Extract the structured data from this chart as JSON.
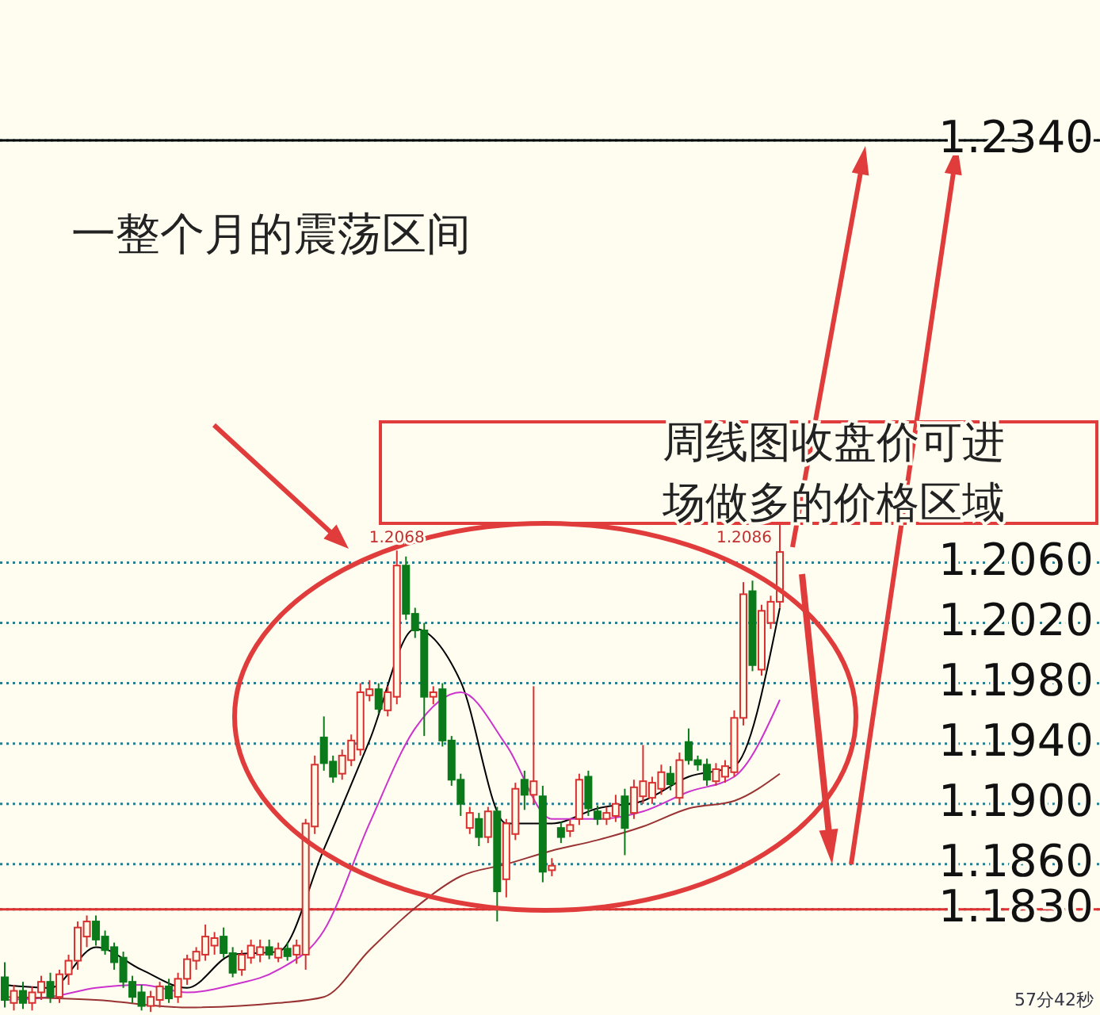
{
  "chart_data": {
    "type": "candlestick",
    "categories": [
      null,
      null,
      null,
      null,
      null,
      null,
      null,
      null,
      null,
      null,
      null,
      null,
      null,
      null,
      null,
      null,
      null,
      null,
      null,
      null,
      null,
      null,
      null,
      null,
      null,
      null,
      null,
      null,
      null,
      null,
      null,
      null,
      null,
      null,
      null,
      null,
      null,
      null,
      null,
      null,
      null,
      null,
      null,
      null,
      null,
      null,
      null,
      null,
      null,
      null,
      null,
      null,
      null,
      null,
      null,
      null,
      null,
      null,
      null,
      null,
      null,
      null,
      null,
      null,
      null,
      null,
      null,
      null,
      null,
      null,
      null,
      null,
      null,
      null,
      null,
      null,
      null,
      null,
      null,
      null,
      null,
      null,
      null,
      null,
      null,
      null
    ],
    "ohlc": [
      [
        1.1785,
        1.1795,
        1.1765,
        1.177
      ],
      [
        1.1768,
        1.178,
        1.1763,
        1.1776
      ],
      [
        1.1776,
        1.1782,
        1.1764,
        1.1768
      ],
      [
        1.1768,
        1.1779,
        1.1763,
        1.1775
      ],
      [
        1.1775,
        1.1786,
        1.177,
        1.1782
      ],
      [
        1.1782,
        1.1788,
        1.1768,
        1.1772
      ],
      [
        1.1772,
        1.179,
        1.1768,
        1.1787
      ],
      [
        1.1787,
        1.18,
        1.178,
        1.1796
      ],
      [
        1.1796,
        1.1822,
        1.179,
        1.1818
      ],
      [
        1.1812,
        1.1826,
        1.1805,
        1.1822
      ],
      [
        1.1822,
        1.1826,
        1.1806,
        1.181
      ],
      [
        1.1812,
        1.1816,
        1.18,
        1.1803
      ],
      [
        1.1805,
        1.1808,
        1.179,
        1.1795
      ],
      [
        1.1798,
        1.1802,
        1.1778,
        1.1782
      ],
      [
        1.1782,
        1.1786,
        1.1768,
        1.1772
      ],
      [
        1.1775,
        1.178,
        1.1763,
        1.1766
      ],
      [
        1.1766,
        1.1776,
        1.1762,
        1.1772
      ],
      [
        1.177,
        1.1782,
        1.1765,
        1.1779
      ],
      [
        1.1779,
        1.1784,
        1.1768,
        1.1771
      ],
      [
        1.1772,
        1.1788,
        1.1768,
        1.1784
      ],
      [
        1.1784,
        1.18,
        1.178,
        1.1797
      ],
      [
        1.1796,
        1.1805,
        1.179,
        1.1802
      ],
      [
        1.18,
        1.182,
        1.1796,
        1.1812
      ],
      [
        1.1806,
        1.1815,
        1.18,
        1.1811
      ],
      [
        1.1812,
        1.1818,
        1.1798,
        1.1801
      ],
      [
        1.1801,
        1.1805,
        1.1785,
        1.1788
      ],
      [
        1.179,
        1.1803,
        1.1786,
        1.18
      ],
      [
        1.1798,
        1.181,
        1.1794,
        1.1806
      ],
      [
        1.18,
        1.181,
        1.1795,
        1.1805
      ],
      [
        1.1805,
        1.181,
        1.1797,
        1.18
      ],
      [
        1.1798,
        1.1808,
        1.1795,
        1.1804
      ],
      [
        1.1804,
        1.1808,
        1.1796,
        1.1799
      ],
      [
        1.18,
        1.181,
        1.1794,
        1.1806
      ],
      [
        1.18,
        1.189,
        1.179,
        1.1887
      ],
      [
        1.1885,
        1.1932,
        1.188,
        1.1926
      ],
      [
        1.1944,
        1.1958,
        1.1922,
        1.1927
      ],
      [
        1.1928,
        1.1932,
        1.1914,
        1.1918
      ],
      [
        1.192,
        1.1936,
        1.1916,
        1.1932
      ],
      [
        1.1929,
        1.1946,
        1.1925,
        1.1942
      ],
      [
        1.1936,
        1.198,
        1.1932,
        1.1974
      ],
      [
        1.1972,
        1.1982,
        1.1968,
        1.1976
      ],
      [
        1.1976,
        1.198,
        1.196,
        1.1963
      ],
      [
        1.1962,
        1.1978,
        1.1958,
        1.1974
      ],
      [
        1.1971,
        1.2068,
        1.1966,
        1.2058
      ],
      [
        1.2058,
        1.2064,
        1.2022,
        1.2026
      ],
      [
        1.2026,
        1.203,
        1.201,
        1.2015
      ],
      [
        1.2015,
        1.202,
        1.1945,
        1.1971
      ],
      [
        1.1971,
        1.1978,
        1.1966,
        1.1974
      ],
      [
        1.1976,
        1.198,
        1.1938,
        1.1942
      ],
      [
        1.1942,
        1.1945,
        1.1912,
        1.1916
      ],
      [
        1.1916,
        1.192,
        1.1892,
        1.19
      ],
      [
        1.1884,
        1.1898,
        1.188,
        1.1894
      ],
      [
        1.189,
        1.1894,
        1.1872,
        1.1878
      ],
      [
        1.1878,
        1.1898,
        1.1874,
        1.1895
      ],
      [
        1.1895,
        1.1898,
        1.1822,
        1.1842
      ],
      [
        1.185,
        1.189,
        1.1838,
        1.1887
      ],
      [
        1.188,
        1.1914,
        1.1876,
        1.191
      ],
      [
        1.1916,
        1.1922,
        1.1896,
        1.1906
      ],
      [
        1.1906,
        1.1978,
        1.19,
        1.1915
      ],
      [
        1.1905,
        1.1912,
        1.1848,
        1.1855
      ],
      [
        1.1856,
        1.1864,
        1.1852,
        1.1859
      ],
      [
        1.1884,
        1.1888,
        1.1874,
        1.1878
      ],
      [
        1.1882,
        1.189,
        1.1878,
        1.1886
      ],
      [
        1.189,
        1.192,
        1.1886,
        1.1916
      ],
      [
        1.1918,
        1.1922,
        1.1892,
        1.1897
      ],
      [
        1.1895,
        1.1899,
        1.1886,
        1.189
      ],
      [
        1.189,
        1.1898,
        1.1886,
        1.1894
      ],
      [
        1.1892,
        1.1906,
        1.1888,
        1.19
      ],
      [
        1.1905,
        1.191,
        1.1866,
        1.1884
      ],
      [
        1.1894,
        1.1916,
        1.189,
        1.1911
      ],
      [
        1.1905,
        1.1939,
        1.19,
        1.1915
      ],
      [
        1.1904,
        1.1918,
        1.19,
        1.1914
      ],
      [
        1.191,
        1.1926,
        1.1906,
        1.1921
      ],
      [
        1.192,
        1.1925,
        1.1909,
        1.1913
      ],
      [
        1.1904,
        1.1934,
        1.19,
        1.1929
      ],
      [
        1.1941,
        1.195,
        1.1926,
        1.1929
      ],
      [
        1.1929,
        1.1932,
        1.1922,
        1.1926
      ],
      [
        1.1926,
        1.193,
        1.1912,
        1.1916
      ],
      [
        1.1915,
        1.1927,
        1.1912,
        1.1923
      ],
      [
        1.1918,
        1.1929,
        1.1914,
        1.1925
      ],
      [
        1.1921,
        1.1962,
        1.1918,
        1.1957
      ],
      [
        1.1957,
        1.2047,
        1.1952,
        1.2039
      ],
      [
        1.2041,
        1.2048,
        1.1988,
        1.1992
      ],
      [
        1.1989,
        1.2032,
        1.1985,
        1.2028
      ],
      [
        1.202,
        1.2038,
        1.2016,
        1.2034
      ],
      [
        1.2034,
        1.2086,
        1.203,
        1.2067
      ]
    ],
    "series": [
      {
        "type": "line",
        "color": "#000000",
        "values": [
          1.178,
          null,
          null,
          null,
          null,
          1.1778,
          null,
          null,
          null,
          null,
          1.1805,
          null,
          null,
          null,
          null,
          1.179,
          null,
          null,
          null,
          null,
          1.1778,
          null,
          null,
          null,
          null,
          1.18,
          null,
          null,
          null,
          null,
          1.1802,
          null,
          null,
          null,
          null,
          1.187,
          null,
          null,
          null,
          null,
          1.1942,
          null,
          null,
          null,
          null,
          1.2016,
          null,
          null,
          null,
          null,
          1.1981,
          null,
          null,
          null,
          null,
          1.1887,
          null,
          null,
          null,
          null,
          1.1887,
          null,
          null,
          null,
          null,
          1.1897,
          null,
          null,
          null,
          null,
          1.1902,
          null,
          null,
          null,
          null,
          1.1918,
          null,
          null,
          null,
          null,
          1.1925,
          null,
          null,
          null,
          null,
          1.203
        ]
      },
      {
        "type": "line",
        "color": "#cc33cc",
        "values": [
          1.177,
          null,
          null,
          null,
          null,
          1.1772,
          null,
          null,
          null,
          null,
          1.1778,
          null,
          null,
          null,
          null,
          1.178,
          null,
          null,
          null,
          null,
          1.1775,
          null,
          null,
          null,
          null,
          1.178,
          null,
          null,
          null,
          null,
          1.179,
          null,
          null,
          null,
          null,
          1.1816,
          null,
          null,
          null,
          null,
          1.1887,
          null,
          null,
          null,
          null,
          1.195,
          null,
          null,
          null,
          null,
          1.1974,
          null,
          null,
          null,
          null,
          1.1939,
          null,
          null,
          null,
          null,
          1.189,
          null,
          null,
          null,
          null,
          1.189,
          null,
          null,
          null,
          null,
          1.1895,
          null,
          null,
          null,
          null,
          1.1908,
          null,
          null,
          null,
          null,
          1.1918,
          null,
          null,
          null,
          null,
          1.1969
        ]
      },
      {
        "type": "line",
        "color": "#993333",
        "values": [
          1.1772,
          null,
          null,
          null,
          null,
          null,
          null,
          null,
          null,
          null,
          1.177,
          null,
          null,
          null,
          null,
          null,
          null,
          null,
          null,
          null,
          1.1765,
          null,
          null,
          null,
          null,
          null,
          null,
          null,
          null,
          null,
          1.1768,
          null,
          null,
          null,
          null,
          1.1772,
          null,
          null,
          null,
          null,
          1.1803,
          null,
          null,
          null,
          null,
          1.1831,
          null,
          null,
          null,
          null,
          1.1852,
          null,
          null,
          null,
          null,
          1.186,
          null,
          null,
          null,
          null,
          1.1869,
          null,
          null,
          null,
          null,
          1.1876,
          null,
          null,
          null,
          null,
          1.1885,
          null,
          null,
          null,
          null,
          1.1897,
          null,
          null,
          null,
          null,
          1.1902,
          null,
          null,
          null,
          null,
          1.192
        ]
      }
    ],
    "ylim": [
      1.176,
      1.2433
    ],
    "yticks": [
      {
        "value": 1.234,
        "label": "1.2340"
      },
      {
        "value": 1.206,
        "label": "1.2060"
      },
      {
        "value": 1.202,
        "label": "1.2020"
      },
      {
        "value": 1.198,
        "label": "1.1980"
      },
      {
        "value": 1.194,
        "label": "1.1940"
      },
      {
        "value": 1.19,
        "label": "1.1900"
      },
      {
        "value": 1.186,
        "label": "1.1860"
      },
      {
        "value": 1.183,
        "label": "1.1830"
      }
    ],
    "grid": "y",
    "ref_lines": [
      {
        "axis": "y",
        "value": 1.234,
        "color": "#000000",
        "line_style": "solid"
      },
      {
        "axis": "y",
        "value": 1.183,
        "color": "#e03030",
        "line_style": "solid"
      }
    ],
    "annotations": [
      "一整个月的震荡区间",
      "周线图收盘价可进场做多的价格区域",
      {
        "text": "1.2068",
        "y": 1.2068
      },
      "1.2086",
      "57分42秒"
    ]
  }
}
